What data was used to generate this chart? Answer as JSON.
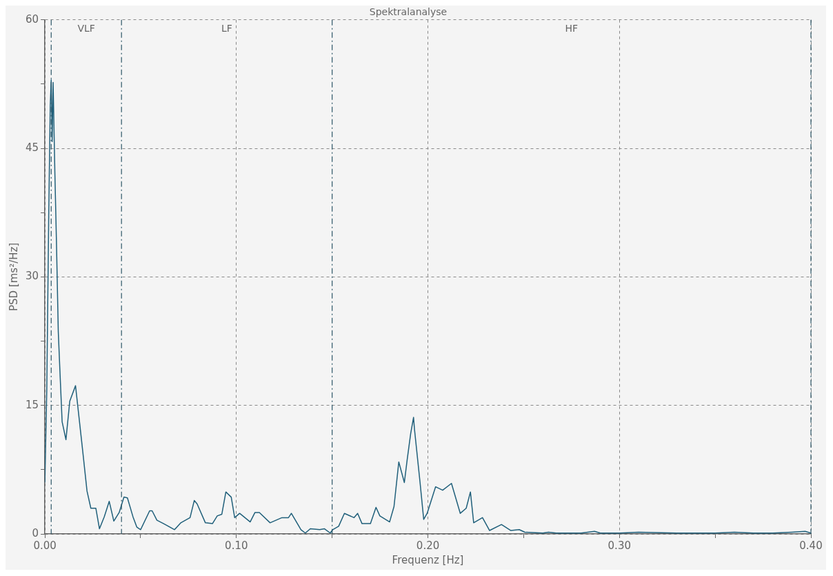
{
  "chart_data": {
    "type": "line",
    "title": "Spektralanalyse",
    "xlabel": "Frequenz [Hz]",
    "ylabel": "PSD [ms²/Hz]",
    "series": [
      {
        "color": "#1f5f7a",
        "x": [
          0,
          0.001,
          0.002,
          0.0028,
          0.0033,
          0.0038,
          0.0043,
          0.0052,
          0.006,
          0.007,
          0.0078,
          0.009,
          0.011,
          0.013,
          0.016,
          0.0196,
          0.022,
          0.024,
          0.0266,
          0.0285,
          0.031,
          0.0336,
          0.036,
          0.0388,
          0.0413,
          0.0431,
          0.046,
          0.048,
          0.05,
          0.0547,
          0.056,
          0.0585,
          0.062,
          0.0677,
          0.071,
          0.0758,
          0.078,
          0.0795,
          0.0838,
          0.0875,
          0.09,
          0.0924,
          0.0945,
          0.0973,
          0.0991,
          0.1017,
          0.1072,
          0.1097,
          0.112,
          0.1176,
          0.1238,
          0.1272,
          0.1287,
          0.1337,
          0.136,
          0.1386,
          0.1435,
          0.146,
          0.149,
          0.1503,
          0.1534,
          0.1564,
          0.1614,
          0.1633,
          0.1656,
          0.17,
          0.1729,
          0.1749,
          0.18,
          0.1823,
          0.1848,
          0.1877,
          0.1892,
          0.191,
          0.1925,
          0.193,
          0.1959,
          0.1978,
          0.1996,
          0.204,
          0.2077,
          0.2123,
          0.2169,
          0.22,
          0.2222,
          0.2239,
          0.2285,
          0.2322,
          0.2384,
          0.2433,
          0.2477,
          0.2506,
          0.26,
          0.263,
          0.267,
          0.28,
          0.287,
          0.29,
          0.3,
          0.31,
          0.33,
          0.35,
          0.36,
          0.37,
          0.38,
          0.39,
          0.397,
          0.4
        ],
        "values": [
          6,
          17,
          37,
          50,
          53,
          45.8,
          52.7,
          42.3,
          34.5,
          23.6,
          19.3,
          13.1,
          11,
          15.5,
          17.3,
          10,
          5,
          3,
          3,
          0.6,
          2,
          3.8,
          1.5,
          2.5,
          4.3,
          4.2,
          2,
          0.8,
          0.5,
          2.7,
          2.7,
          1.6,
          1.2,
          0.5,
          1.3,
          1.9,
          3.9,
          3.5,
          1.3,
          1.2,
          2.1,
          2.3,
          4.9,
          4.3,
          1.9,
          2.4,
          1.4,
          2.5,
          2.5,
          1.3,
          1.9,
          1.9,
          2.4,
          0.5,
          0.1,
          0.6,
          0.5,
          0.6,
          0.1,
          0.5,
          0.9,
          2.4,
          1.9,
          2.4,
          1.2,
          1.2,
          3.1,
          2.1,
          1.4,
          3.2,
          8.4,
          6,
          8.7,
          11.7,
          13.6,
          12.2,
          6,
          1.7,
          2.4,
          5.5,
          5.1,
          5.9,
          2.4,
          3,
          4.9,
          1.3,
          1.9,
          0.4,
          1.1,
          0.4,
          0.5,
          0.2,
          0.1,
          0.2,
          0.1,
          0.1,
          0.3,
          0.1,
          0.1,
          0.2,
          0.1,
          0.1,
          0.2,
          0.1,
          0.1,
          0.2,
          0.3,
          0.1
        ]
      }
    ],
    "xlim": [
      0,
      0.4
    ],
    "xticks": [
      {
        "value": 0,
        "label": "0.00"
      },
      {
        "value": 0.05,
        "label": null
      },
      {
        "value": 0.1,
        "label": "0.10"
      },
      {
        "value": 0.15,
        "label": null
      },
      {
        "value": 0.2,
        "label": "0.20"
      },
      {
        "value": 0.25,
        "label": null
      },
      {
        "value": 0.3,
        "label": "0.30"
      },
      {
        "value": 0.35,
        "label": null
      },
      {
        "value": 0.4,
        "label": "0.40"
      }
    ],
    "ylim": [
      0,
      60
    ],
    "yticks": [
      0,
      {
        "value": 7.5,
        "label": null
      },
      15,
      {
        "value": 22.5,
        "label": null
      },
      30,
      {
        "value": 37.5,
        "label": null
      },
      45,
      {
        "value": 52.5,
        "label": null
      },
      60
    ],
    "grid": true,
    "legend": false,
    "marker": "none",
    "line_style": "solid",
    "ref_lines": [
      {
        "axis": "x",
        "value": 0.0033,
        "line_style": "dashed"
      },
      {
        "axis": "x",
        "value": 0.04,
        "line_style": "dashed"
      },
      {
        "axis": "x",
        "value": 0.15,
        "line_style": "dashed"
      },
      {
        "axis": "x",
        "value": 0.4,
        "line_style": "dashed"
      }
    ],
    "annotations": [
      "VLF",
      "LF",
      "HF"
    ]
  }
}
